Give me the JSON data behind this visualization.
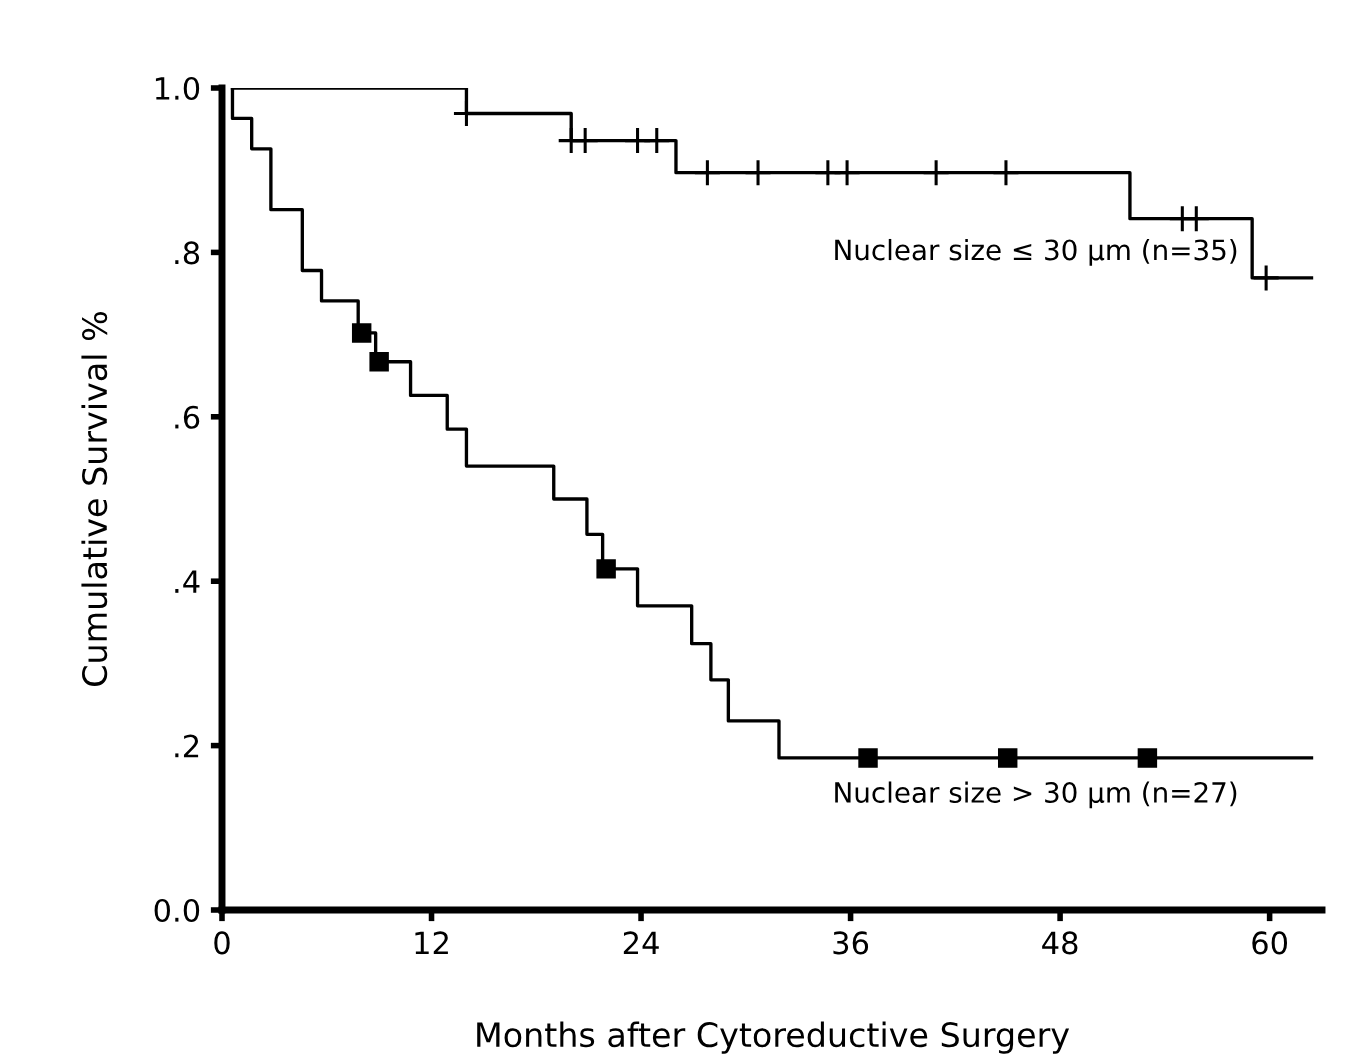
{
  "chart_data": {
    "type": "step",
    "xlabel": "Months after Cytoreductive Surgery",
    "ylabel": "Cumulative Survival %",
    "xlim": [
      0,
      63
    ],
    "xticks": [
      0,
      12,
      24,
      36,
      48,
      60
    ],
    "ylim": [
      0,
      1.0
    ],
    "yticks": [
      {
        "value": 0,
        "label": "0.0"
      },
      {
        "value": 0.2,
        "label": ".2"
      },
      {
        "value": 0.4,
        "label": ".4"
      },
      {
        "value": 0.6,
        "label": ".6"
      },
      {
        "value": 0.8,
        "label": ".8"
      },
      {
        "value": 1.0,
        "label": "1.0"
      }
    ],
    "grid": false,
    "legend": false,
    "series": [
      {
        "color": "#000000",
        "x": [
          0.6,
          14,
          20,
          26,
          52,
          59,
          62.4
        ],
        "values": [
          1.0,
          0.969,
          0.936,
          0.897,
          0.841,
          0.769,
          0.769
        ]
      },
      {
        "color": "#000000",
        "x": [
          0.6,
          0.6,
          1.7,
          2.8,
          4.6,
          5.7,
          7.8,
          8.8,
          10.8,
          12.9,
          14,
          19,
          20.9,
          21.8,
          23.8,
          26.9,
          28,
          29,
          31.9,
          62.4
        ],
        "values": [
          1.0,
          0.963,
          0.926,
          0.852,
          0.778,
          0.741,
          0.702,
          0.667,
          0.626,
          0.585,
          0.54,
          0.5,
          0.457,
          0.415,
          0.37,
          0.324,
          0.28,
          0.23,
          0.185,
          0.185
        ]
      },
      {
        "type": "scatter",
        "marker": "cross",
        "color": "#000000",
        "x": [
          14,
          20,
          20.8,
          23.8,
          24.9,
          27.8,
          30.7,
          34.7,
          35.8,
          40.9,
          44.9,
          55,
          55.8,
          59.8
        ],
        "values": [
          0.969,
          0.936,
          0.936,
          0.936,
          0.936,
          0.897,
          0.897,
          0.897,
          0.897,
          0.897,
          0.897,
          0.841,
          0.841,
          0.769
        ]
      },
      {
        "type": "scatter",
        "marker": "square",
        "color": "#000000",
        "x": [
          8,
          9,
          22,
          37,
          45,
          53
        ],
        "values": [
          0.702,
          0.667,
          0.415,
          0.185,
          0.185,
          0.185
        ]
      }
    ],
    "annotations": [
      "Nuclear size ≤ 30 μm (n=35)",
      "Nuclear size > 30 μm (n=27)"
    ]
  }
}
